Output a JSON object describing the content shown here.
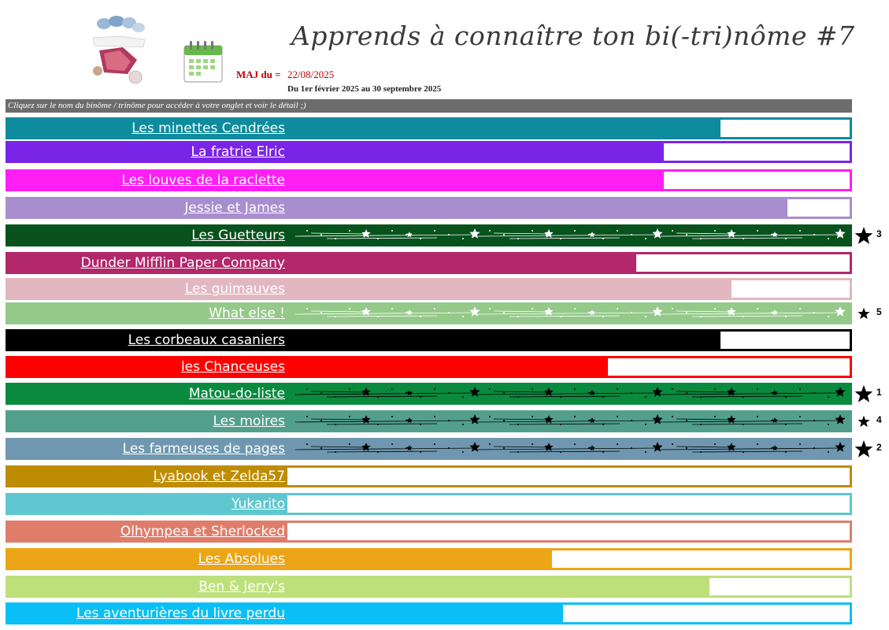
{
  "header": {
    "title": "Apprends à connaître ton bi(-tri)nôme #7",
    "maj_label": "MAJ du =",
    "maj_date": "22/08/2025",
    "range": "Du 1er février 2025 au 30 septembre 2025",
    "instruction": "Cliquez sur le nom du binôme / trinôme pour accéder à votre onglet et voir le détail ;)"
  },
  "icons": {
    "logo": "book-club-logo-icon",
    "calendar": "calendar-icon",
    "star": "star-icon"
  },
  "teams": [
    {
      "name": "Les minettes Cendrées",
      "color": "#0e8b9c",
      "progress": 0.77,
      "completed": false
    },
    {
      "name": "La fratrie Elric",
      "color": "#7a24e8",
      "progress": 0.67,
      "completed": false
    },
    {
      "name": "Les louves de la raclette",
      "color": "#ff1ff4",
      "progress": 0.67,
      "completed": false
    },
    {
      "name": "Jessie et James",
      "color": "#a88ecf",
      "progress": 0.89,
      "completed": false
    },
    {
      "name": "Les Guetteurs",
      "color": "#07521d",
      "progress": 1.0,
      "completed": true,
      "rank": "3",
      "star_color": "#ffffff"
    },
    {
      "name": "Dunder Mifflin Paper Company",
      "color": "#b3276b",
      "progress": 0.62,
      "completed": false
    },
    {
      "name": "Les guimauves",
      "color": "#e3b7c0",
      "progress": 0.79,
      "completed": false
    },
    {
      "name": "What else !",
      "color": "#94c989",
      "progress": 1.0,
      "completed": true,
      "rank": "5",
      "star_color": "#ffffff"
    },
    {
      "name": "Les corbeaux casaniers",
      "color": "#000000",
      "progress": 0.77,
      "completed": false
    },
    {
      "name": "les Chanceuses",
      "color": "#ff0000",
      "progress": 0.57,
      "completed": false
    },
    {
      "name": "Matou-do-liste",
      "color": "#0a8a3e",
      "progress": 1.0,
      "completed": true,
      "rank": "1",
      "star_color": "#000000"
    },
    {
      "name": "Les moires",
      "color": "#52a08c",
      "progress": 1.0,
      "completed": true,
      "rank": "4",
      "star_color": "#000000"
    },
    {
      "name": "Les farmeuses de pages",
      "color": "#6f98b0",
      "progress": 1.0,
      "completed": true,
      "rank": "2",
      "star_color": "#000000"
    },
    {
      "name": "Lyabook et Zelda57",
      "color": "#be8c00",
      "progress": 0.0,
      "completed": false
    },
    {
      "name": "Yukarito",
      "color": "#5ec7cf",
      "progress": 0.0,
      "completed": false
    },
    {
      "name": "Olhympea et Sherlocked",
      "color": "#df7d6b",
      "progress": 0.0,
      "completed": false
    },
    {
      "name": "Les Absolues",
      "color": "#eca516",
      "progress": 0.47,
      "completed": false
    },
    {
      "name": "Ben & Jerry's",
      "color": "#bde07a",
      "progress": 0.75,
      "completed": false
    },
    {
      "name": "Les aventurières du livre perdu",
      "color": "#0abff5",
      "progress": 0.49,
      "completed": false
    }
  ]
}
